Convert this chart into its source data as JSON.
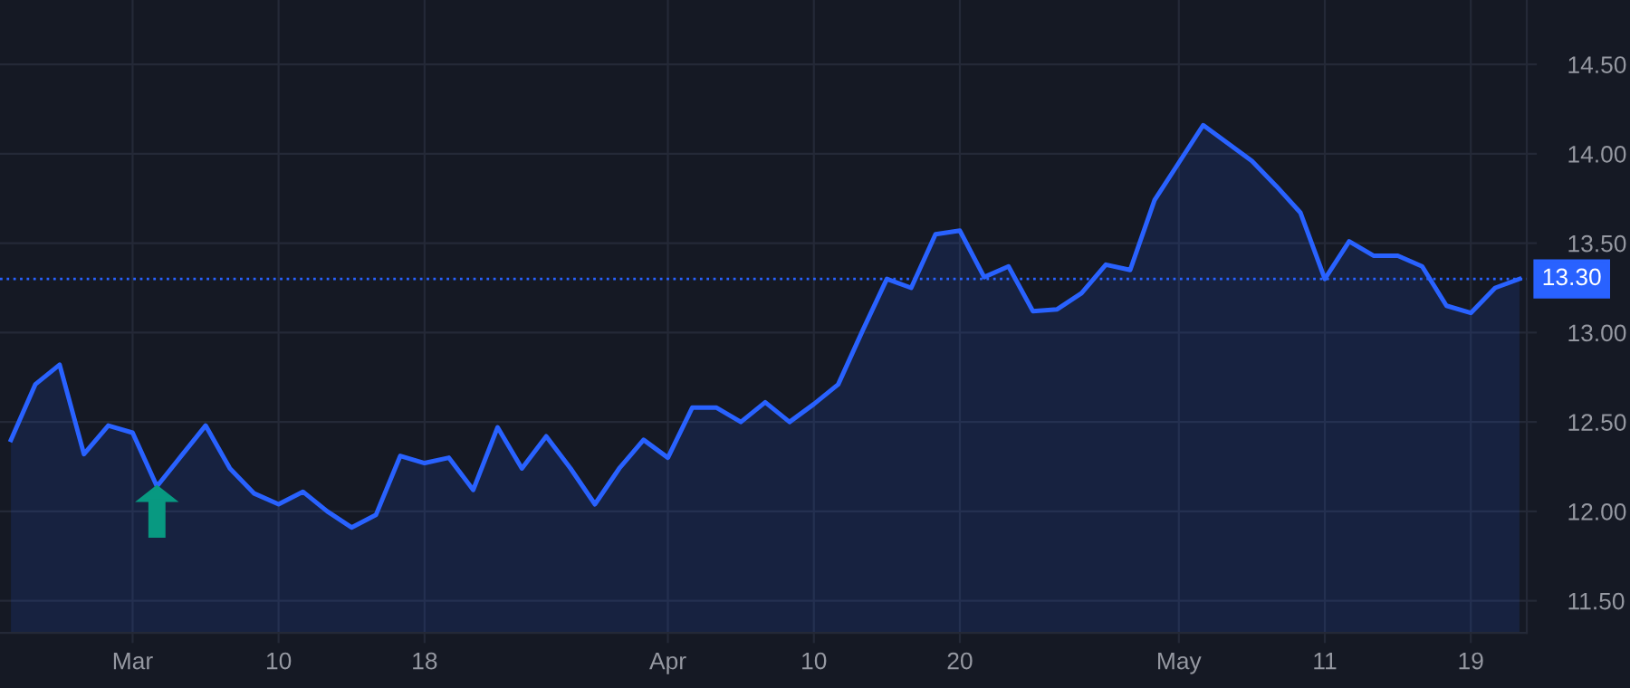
{
  "chart_data": {
    "type": "area",
    "categories": [
      null,
      null,
      null,
      null,
      null,
      "Mar",
      null,
      null,
      null,
      null,
      null,
      "10",
      null,
      null,
      null,
      null,
      null,
      "18",
      null,
      null,
      null,
      null,
      null,
      null,
      null,
      null,
      null,
      "Apr",
      null,
      null,
      null,
      null,
      null,
      "10",
      null,
      null,
      null,
      null,
      null,
      "20",
      null,
      null,
      null,
      null,
      null,
      null,
      null,
      null,
      "May",
      null,
      null,
      null,
      null,
      null,
      "11",
      null,
      null,
      null,
      null,
      null,
      "19",
      null,
      null
    ],
    "series": [
      {
        "color": "#2962ff",
        "values": [
          12.4,
          12.71,
          12.82,
          12.32,
          12.48,
          12.44,
          12.14,
          12.31,
          12.48,
          12.24,
          12.1,
          12.04,
          12.11,
          12.0,
          11.91,
          11.98,
          12.31,
          12.27,
          12.3,
          12.12,
          12.47,
          12.24,
          12.42,
          12.24,
          12.04,
          12.24,
          12.4,
          12.3,
          12.58,
          12.58,
          12.5,
          12.61,
          12.5,
          12.6,
          12.71,
          13.01,
          13.3,
          13.25,
          13.55,
          13.57,
          13.31,
          13.37,
          13.12,
          13.13,
          13.22,
          13.38,
          13.35,
          13.74,
          13.95,
          14.16,
          14.06,
          13.96,
          13.82,
          13.67,
          13.3,
          13.51,
          13.43,
          13.43,
          13.37,
          13.15,
          13.11,
          13.25,
          13.3
        ]
      }
    ],
    "ylim": [
      11.32,
      14.86
    ],
    "yticks": [
      {
        "value": 11.5,
        "label": "11.50"
      },
      {
        "value": 12.0,
        "label": "12.00"
      },
      {
        "value": 12.5,
        "label": "12.50"
      },
      {
        "value": 13.0,
        "label": "13.00"
      },
      {
        "value": 13.5,
        "label": "13.50"
      },
      {
        "value": 14.0,
        "label": "14.00"
      },
      {
        "value": 14.5,
        "label": "14.50"
      }
    ],
    "ref_lines": [
      {
        "axis": "y",
        "value": 13.3,
        "label": "13.30",
        "color": "#2962ff",
        "line_style": "dotted"
      }
    ],
    "grid": true,
    "legend": false
  }
}
